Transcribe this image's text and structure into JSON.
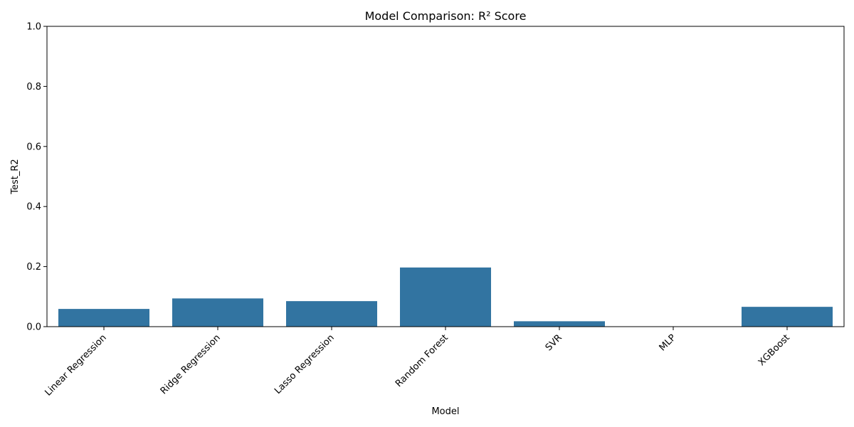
{
  "chart_data": {
    "type": "bar",
    "title": "Model Comparison: R² Score",
    "xlabel": "Model",
    "ylabel": "Test_R2",
    "categories": [
      "Linear Regression",
      "Ridge Regression",
      "Lasso Regression",
      "Random Forest",
      "SVR",
      "MLP",
      "XGBoost"
    ],
    "values": [
      0.059,
      0.094,
      0.085,
      0.197,
      0.018,
      0.0,
      0.066
    ],
    "ylim": [
      0,
      1.0
    ],
    "yticks": [
      "0.0",
      "0.2",
      "0.4",
      "0.6",
      "0.8",
      "1.0"
    ],
    "bar_color": "#3274a1",
    "grid": false,
    "xtick_rotation": 45
  }
}
